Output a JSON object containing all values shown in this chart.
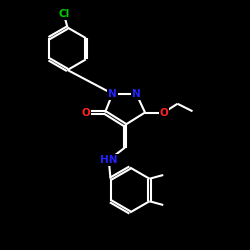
{
  "background": "#000000",
  "bond_color": "#ffffff",
  "N_color": "#2222ff",
  "O_color": "#ff2222",
  "Cl_color": "#00cc00",
  "bond_width": 1.5,
  "dbo": 0.055,
  "fig_width": 2.5,
  "fig_height": 2.5,
  "dpi": 100,
  "xlim": [
    0,
    10
  ],
  "ylim": [
    0,
    10
  ]
}
